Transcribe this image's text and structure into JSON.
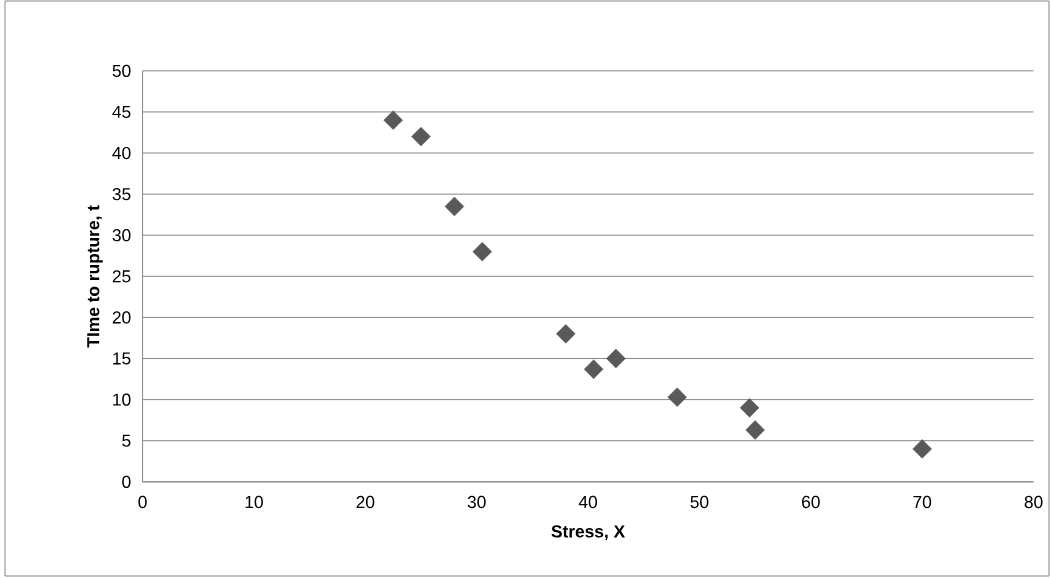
{
  "chart_data": {
    "type": "scatter",
    "xlabel": "Stress, X",
    "ylabel": "TIme to rupture, t",
    "x": [
      22.5,
      25,
      28,
      30.5,
      38,
      40.5,
      42.5,
      48,
      54.5,
      55,
      70
    ],
    "values": [
      44,
      42,
      33.5,
      28,
      18,
      13.7,
      15,
      10.3,
      9,
      6.3,
      4
    ],
    "color": "#595959",
    "marker": "diamond",
    "xlim": [
      0,
      80
    ],
    "xticks": [
      0,
      10,
      20,
      30,
      40,
      50,
      60,
      70,
      80
    ],
    "ylim": [
      0,
      50
    ],
    "yticks": [
      0,
      5,
      10,
      15,
      20,
      25,
      30,
      35,
      40,
      45,
      50
    ],
    "grid": "y"
  }
}
